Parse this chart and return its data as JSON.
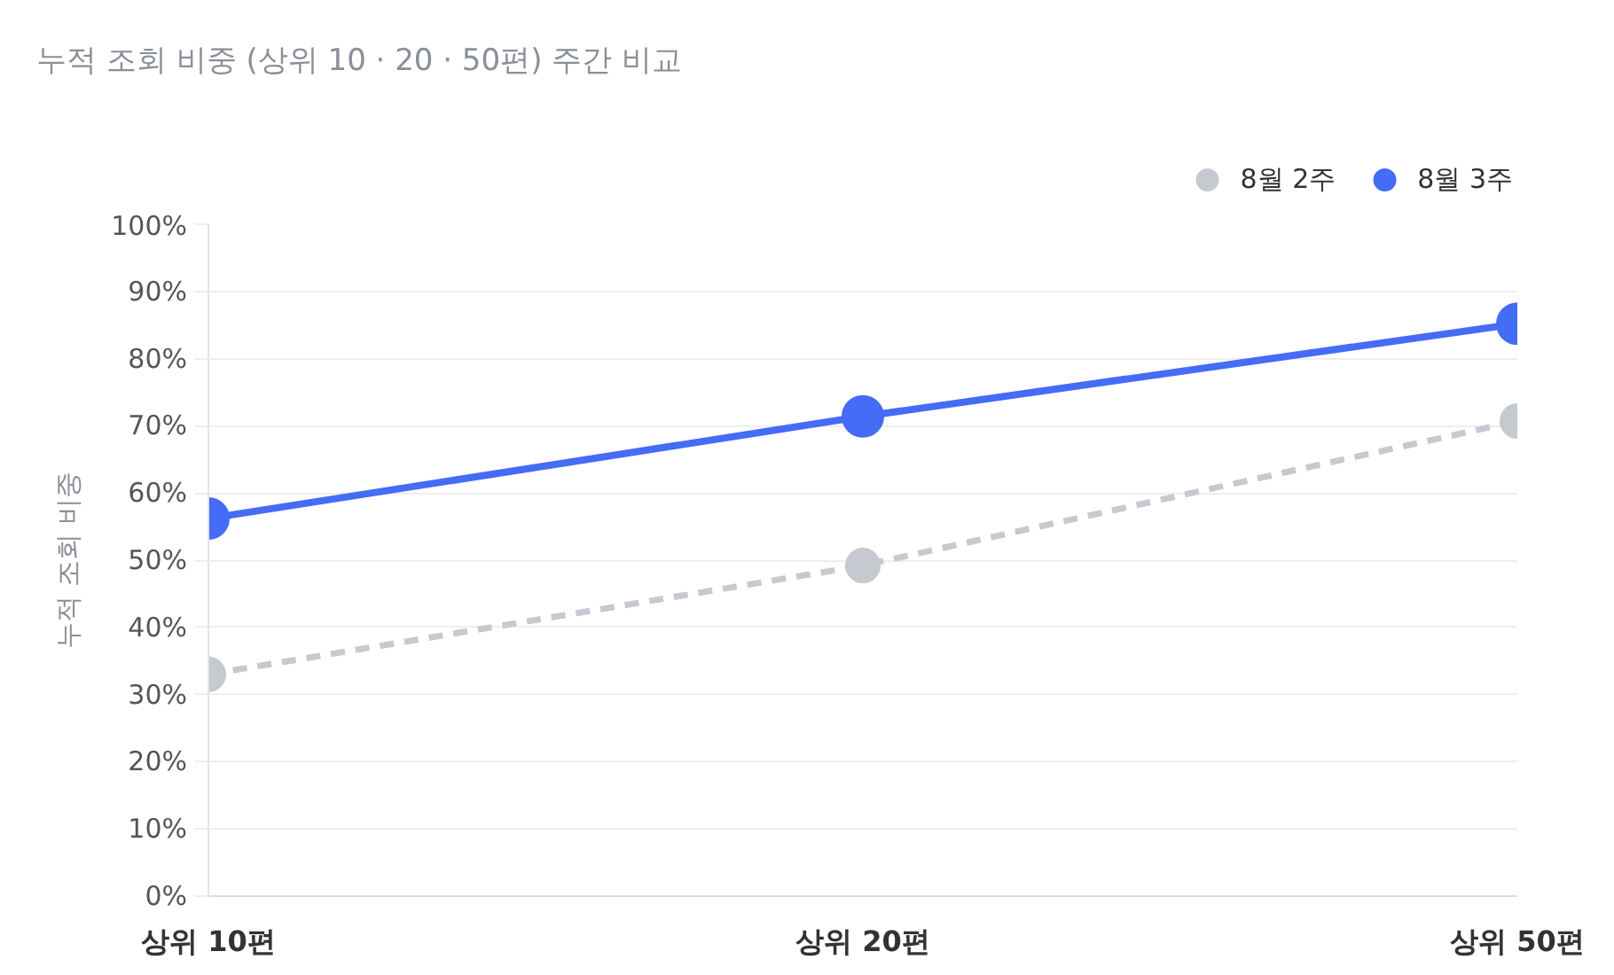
{
  "chart_data": {
    "type": "line",
    "title": "누적 조회 비중 (상위 10 · 20 · 50편) 주간 비교",
    "ylabel": "누적 조회 비중",
    "categories": [
      "상위 10편",
      "상위 20편",
      "상위 50편"
    ],
    "series": [
      {
        "name": "8월 2주",
        "color": "#c6c9cf",
        "values": [
          33.0,
          49.2,
          70.7
        ],
        "line_style": "dashed"
      },
      {
        "name": "8월 3주",
        "color": "#456cf6",
        "values": [
          56.2,
          71.4,
          85.2
        ],
        "line_style": "solid"
      }
    ],
    "ylim": [
      0,
      100
    ],
    "yticks": [
      {
        "value": 0,
        "label": "0%"
      },
      {
        "value": 10,
        "label": "10%"
      },
      {
        "value": 20,
        "label": "20%"
      },
      {
        "value": 30,
        "label": "30%"
      },
      {
        "value": 40,
        "label": "40%"
      },
      {
        "value": 50,
        "label": "50%"
      },
      {
        "value": 60,
        "label": "60%"
      },
      {
        "value": 70,
        "label": "70%"
      },
      {
        "value": 80,
        "label": "80%"
      },
      {
        "value": 90,
        "label": "90%"
      },
      {
        "value": 100,
        "label": "100%"
      }
    ],
    "grid": "y",
    "legend": "top right",
    "marker": "circle"
  }
}
